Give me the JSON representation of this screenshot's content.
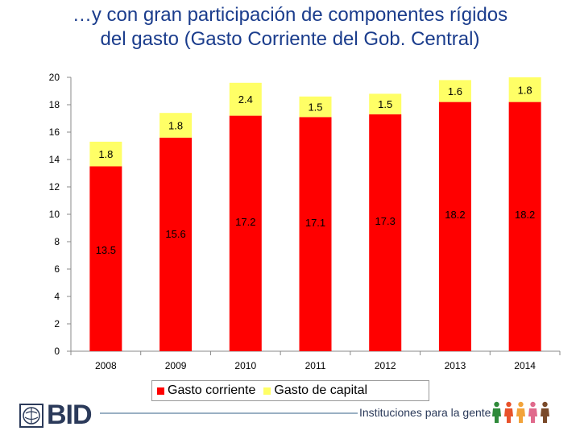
{
  "title": {
    "line1": "…y con gran participación de componentes rígidos",
    "line2": "del gasto (Gasto Corriente del Gob. Central)"
  },
  "chart_data": {
    "type": "bar",
    "stacked": true,
    "categories": [
      "2008",
      "2009",
      "2010",
      "2011",
      "2012",
      "2013",
      "2014"
    ],
    "series": [
      {
        "name": "Gasto corriente",
        "color": "#ff0000",
        "values": [
          13.5,
          15.6,
          17.2,
          17.1,
          17.3,
          18.2,
          18.2
        ]
      },
      {
        "name": "Gasto de capital",
        "color": "#ffff66",
        "values": [
          1.8,
          1.8,
          2.4,
          1.5,
          1.5,
          1.6,
          1.8
        ]
      }
    ],
    "value_labels": {
      "Gasto corriente": [
        "13.5",
        "15.6",
        "17.2",
        "17.1",
        "17.3",
        "18.2",
        "18.2"
      ],
      "Gasto de capital": [
        "1.8",
        "1.8",
        "2.4",
        "1.5",
        "1.5",
        "1.6",
        "1.8"
      ]
    },
    "ylim": [
      0,
      20
    ],
    "yticks": [
      "0",
      "2",
      "4",
      "6",
      "8",
      "10",
      "12",
      "14",
      "16",
      "18",
      "20"
    ],
    "grid": false,
    "legend_position": "bottom"
  },
  "legend": {
    "items": [
      {
        "label": "Gasto corriente",
        "color": "#ff0000"
      },
      {
        "label": "Gasto de capital",
        "color": "#ffff66"
      }
    ]
  },
  "footer": {
    "logo_text": "BID",
    "tagline": "Instituciones para la gente",
    "people_colors": [
      "#2f8a3a",
      "#e8522a",
      "#f2a33a",
      "#e06a8c",
      "#7a4a2a"
    ]
  }
}
